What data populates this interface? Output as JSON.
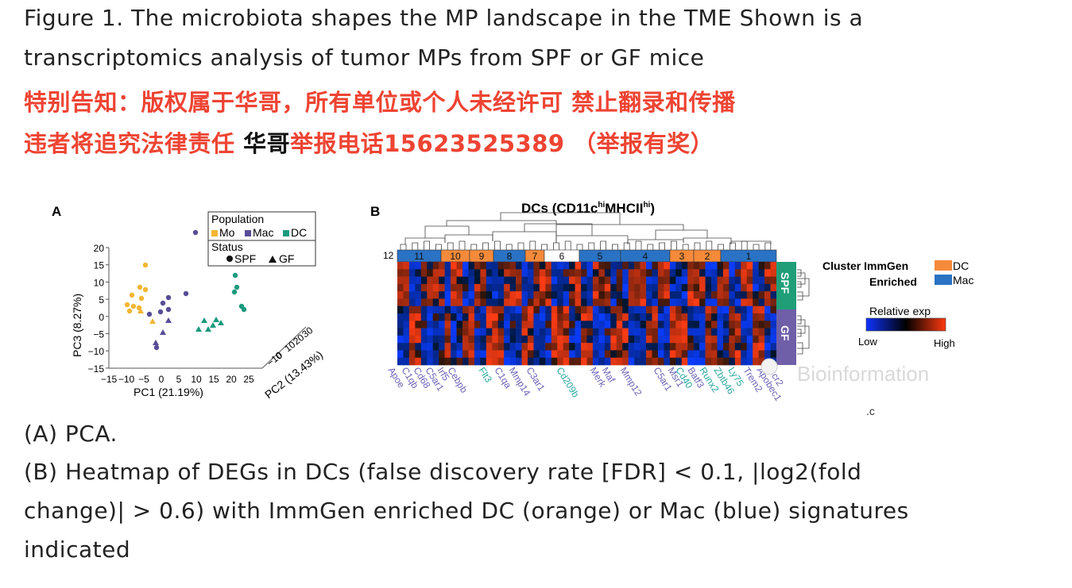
{
  "caption": {
    "title_line1": "Figure 1. The microbiota shapes the MP landscape in the TME Shown is a",
    "title_line2": "transcriptomics analysis of tumor MPs from SPF or GF mice",
    "notice_line1": "特别告知：版权属于华哥，所有单位或个人未经许可 禁止翻录和传播",
    "notice_line2_a": "违者将追究法律责任 ",
    "notice_line2_b": "华哥",
    "notice_line2_c": "举报电话15623525389 （举报有奖）",
    "legend_a": "(A) PCA.",
    "legend_b1": "(B) Heatmap of DEGs in DCs (false discovery rate [FDR] < 0.1, |log2(fold",
    "legend_b2": "change)| > 0.6) with ImmGen enriched DC (orange) or Mac (blue) signatures",
    "legend_b3": "indicated"
  },
  "panel_a": {
    "label": "A",
    "legend_population_title": "Population",
    "legend_mo": "Mo",
    "legend_mac": "Mac",
    "legend_dc": "DC",
    "legend_status_title": "Status",
    "legend_spf": "SPF",
    "legend_gf": "GF",
    "xlabel": "PC1 (21.19%)",
    "ylabel": "PC3 (8.27%)",
    "zlabel": "PC2 (13.43%)",
    "y_ticks": [
      "20",
      "15",
      "10",
      "5",
      "0",
      "−5",
      "−10",
      "−15"
    ],
    "x_ticks": [
      "−15",
      "−10",
      "−5",
      "0",
      "5",
      "10",
      "15",
      "20",
      "25"
    ],
    "z_ticks": [
      "−10",
      "0",
      "10",
      "20",
      "30"
    ],
    "colors": {
      "mo": "#f2b632",
      "mac": "#574e96",
      "dc": "#1a9a7e"
    }
  },
  "panel_b": {
    "label": "B",
    "title": "DCs (CD11c",
    "title_sup1": "hi",
    "title_mid": "MHCII",
    "title_sup2": "hi",
    "title_end": ")",
    "cluster_side_label": "12",
    "clusters": [
      {
        "label": "11",
        "type": "mac"
      },
      {
        "label": "10",
        "type": "dc"
      },
      {
        "label": "9",
        "type": "dc"
      },
      {
        "label": "8",
        "type": "mac"
      },
      {
        "label": "7",
        "type": "dc"
      },
      {
        "label": "6",
        "type": "none"
      },
      {
        "label": "5",
        "type": "mac"
      },
      {
        "label": "4",
        "type": "mac"
      },
      {
        "label": "3",
        "type": "dc"
      },
      {
        "label": "2",
        "type": "dc"
      },
      {
        "label": "1",
        "type": "mac"
      }
    ],
    "row_groups": [
      "SPF",
      "GF"
    ],
    "legend_cluster_title": "Cluster ImmGen",
    "legend_enriched": "Enriched",
    "legend_dc": "DC",
    "legend_mac": "Mac",
    "legend_relative": "Relative exp",
    "legend_low": "Low",
    "legend_high": "High",
    "genes": [
      "Apoe",
      "C1qb",
      "Cd68",
      "C5ar1",
      "Irf5",
      "Cebpb",
      "Flt3",
      "C1qa",
      "Mmp14",
      "C3ar1",
      "Cd209b",
      "Merk",
      "Maf",
      "Mmp12",
      "C5ar1",
      "Msr1",
      "Cd40",
      "Batf3",
      "Runx2",
      "Zbtb46",
      "Ly75",
      "Trem2",
      "Apobec1",
      "Ccr2"
    ],
    "colors": {
      "dc": "#f58a3a",
      "mac": "#2a72c4",
      "spf": "#1f9e78",
      "gf": "#6f5fa8"
    }
  },
  "watermark": "Bioinformation"
}
